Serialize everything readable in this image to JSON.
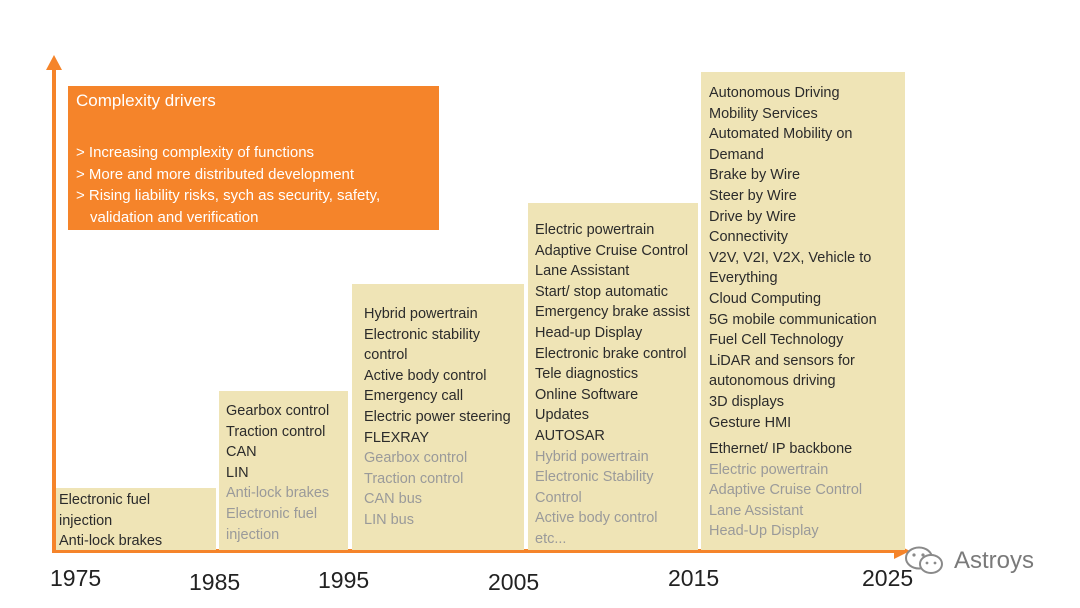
{
  "colors": {
    "accent": "#f5842a",
    "bar": "#efe4b6",
    "text": "#2b2b2b",
    "faded": "#9a9a9a"
  },
  "drivers": {
    "title": "Complexity drivers",
    "items": [
      "> Increasing complexity of functions",
      "> More and more distributed development",
      "> Rising liability risks, sych as security, safety,",
      "validation and verification"
    ]
  },
  "periods": [
    {
      "id": "1975",
      "lines": [
        {
          "t": "Electronic fuel"
        },
        {
          "t": "injection"
        },
        {
          "t": "Anti-lock brakes"
        }
      ]
    },
    {
      "id": "1985",
      "lines": [
        {
          "t": "Gearbox control"
        },
        {
          "t": "Traction control"
        },
        {
          "t": "CAN"
        },
        {
          "t": "LIN"
        },
        {
          "t": "Anti-lock brakes",
          "f": true
        },
        {
          "t": "Electronic fuel",
          "f": true
        },
        {
          "t": "injection",
          "f": true
        }
      ]
    },
    {
      "id": "1995",
      "lines": [
        {
          "t": "Hybrid powertrain"
        },
        {
          "t": "Electronic stability"
        },
        {
          "t": "control"
        },
        {
          "t": "Active body control"
        },
        {
          "t": "Emergency call"
        },
        {
          "t": "Electric power steering"
        },
        {
          "t": "FLEXRAY"
        },
        {
          "t": "Gearbox control",
          "f": true
        },
        {
          "t": "Traction control",
          "f": true
        },
        {
          "t": "CAN bus",
          "f": true
        },
        {
          "t": "LIN bus",
          "f": true
        }
      ]
    },
    {
      "id": "2005",
      "lines": [
        {
          "t": "Electric powertrain"
        },
        {
          "t": "Adaptive Cruise Control"
        },
        {
          "t": "Lane Assistant"
        },
        {
          "t": "Start/ stop automatic"
        },
        {
          "t": "Emergency brake assist"
        },
        {
          "t": "Head-up Display"
        },
        {
          "t": "Electronic brake control"
        },
        {
          "t": "Tele diagnostics"
        },
        {
          "t": "Online Software"
        },
        {
          "t": "Updates"
        },
        {
          "t": "AUTOSAR"
        },
        {
          "t": "Hybrid powertrain",
          "f": true
        },
        {
          "t": "Electronic Stability",
          "f": true
        },
        {
          "t": "Control",
          "f": true
        },
        {
          "t": "Active body control",
          "f": true
        },
        {
          "t": "etc...",
          "f": true
        }
      ]
    },
    {
      "id": "2015",
      "lines": [
        {
          "t": "Autonomous Driving"
        },
        {
          "t": "Mobility Services"
        },
        {
          "t": "Automated Mobility on"
        },
        {
          "t": "Demand"
        },
        {
          "t": "Brake by Wire"
        },
        {
          "t": "Steer by Wire"
        },
        {
          "t": "Drive by Wire"
        },
        {
          "t": "Connectivity"
        },
        {
          "t": "V2V, V2I, V2X, Vehicle to"
        },
        {
          "t": "Everything"
        },
        {
          "t": "Cloud Computing"
        },
        {
          "t": "5G mobile communication"
        },
        {
          "t": "Fuel Cell Technology"
        },
        {
          "t": "LiDAR and sensors for"
        },
        {
          "t": "autonomous driving"
        },
        {
          "t": "3D displays"
        },
        {
          "t": "Gesture HMI"
        },
        {
          "gap": true
        },
        {
          "t": "Ethernet/ IP backbone"
        },
        {
          "t": "Electric powertrain",
          "f": true
        },
        {
          "t": "Adaptive Cruise Control",
          "f": true
        },
        {
          "t": "Lane Assistant",
          "f": true
        },
        {
          "t": "Head-Up Display",
          "f": true
        }
      ]
    }
  ],
  "years": [
    "1975",
    "1985",
    "1995",
    "2005",
    "2015",
    "2025"
  ],
  "watermark": {
    "text": "Astroys",
    "icon": "wechat-icon"
  }
}
